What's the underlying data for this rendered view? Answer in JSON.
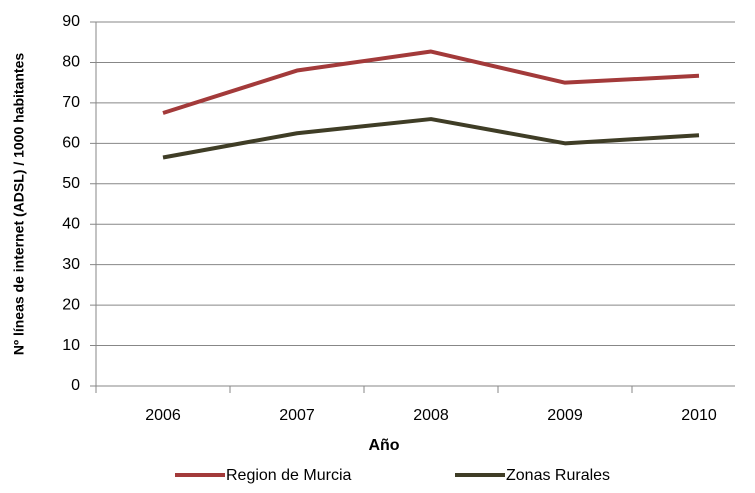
{
  "chart_data": {
    "type": "line",
    "categories": [
      "2006",
      "2007",
      "2008",
      "2009",
      "2010"
    ],
    "series": [
      {
        "name": "Region de Murcia",
        "color": "#a33a3a",
        "values": [
          67.5,
          78,
          82.7,
          75,
          76.7
        ]
      },
      {
        "name": "Zonas Rurales",
        "color": "#3f3d26",
        "values": [
          56.5,
          62.5,
          66,
          60,
          62
        ]
      }
    ],
    "x_label": "Año",
    "y_label": "Nº líneas de internet  (ADSL) / 1000 habitantes",
    "ylim": [
      0,
      90
    ],
    "yticks": [
      0,
      10,
      20,
      30,
      40,
      50,
      60,
      70,
      80,
      90
    ],
    "grid": true,
    "legend": "bottom"
  }
}
